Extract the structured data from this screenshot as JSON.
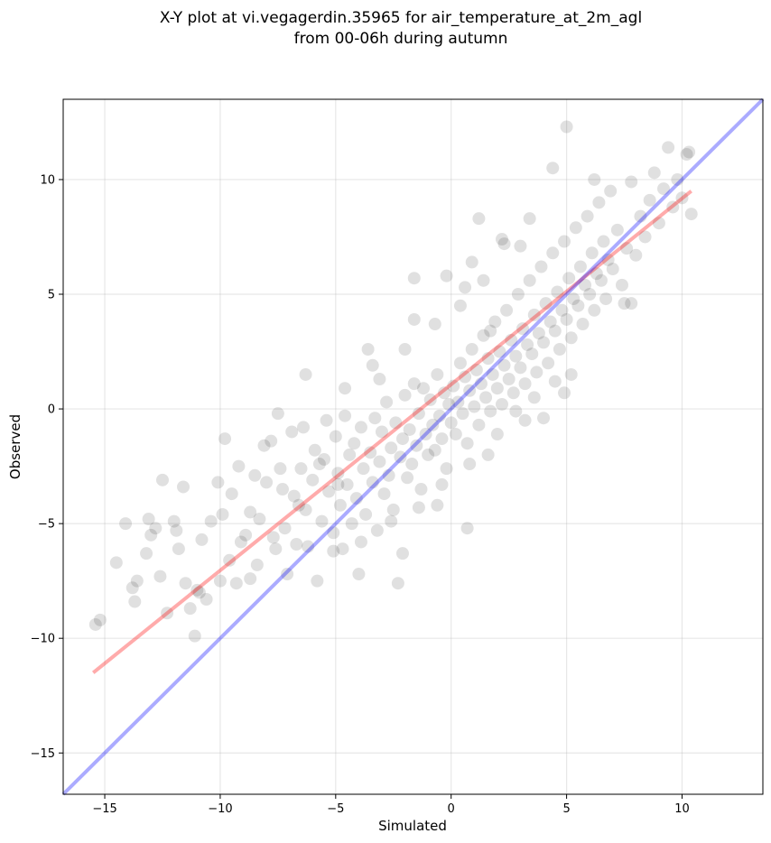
{
  "chart_data": {
    "type": "scatter",
    "title_lines": [
      "X-Y plot at vi.vegagerdin.35965 for air_temperature_at_2m_agl",
      "from 00-06h during autumn"
    ],
    "xlabel": "Simulated",
    "ylabel": "Observed",
    "xlim": [
      -16.8,
      13.5
    ],
    "ylim": [
      -16.8,
      13.5
    ],
    "xticks": [
      -15,
      -10,
      -5,
      0,
      5,
      10
    ],
    "yticks": [
      -15,
      -10,
      -5,
      0,
      5,
      10
    ],
    "xtick_labels": [
      "−15",
      "−10",
      "−5",
      "0",
      "5",
      "10"
    ],
    "ytick_labels": [
      "−15",
      "−10",
      "−5",
      "0",
      "5",
      "10"
    ],
    "grid": true,
    "point_color": "#000000",
    "point_alpha": 0.12,
    "points": [
      [
        -15.4,
        -9.4
      ],
      [
        -15.2,
        -9.2
      ],
      [
        -14.5,
        -6.7
      ],
      [
        -14.1,
        -5.0
      ],
      [
        -13.8,
        -7.8
      ],
      [
        -13.6,
        -7.5
      ],
      [
        -13.7,
        -8.4
      ],
      [
        -13.2,
        -6.3
      ],
      [
        -13.1,
        -4.8
      ],
      [
        -13.0,
        -5.5
      ],
      [
        -12.8,
        -5.2
      ],
      [
        -12.6,
        -7.3
      ],
      [
        -12.5,
        -3.1
      ],
      [
        -12.3,
        -8.9
      ],
      [
        -12.0,
        -4.9
      ],
      [
        -11.9,
        -5.3
      ],
      [
        -11.8,
        -6.1
      ],
      [
        -11.6,
        -3.4
      ],
      [
        -11.5,
        -7.6
      ],
      [
        -11.3,
        -8.7
      ],
      [
        -11.1,
        -9.9
      ],
      [
        -11.0,
        -7.9
      ],
      [
        -10.8,
        -5.7
      ],
      [
        -10.6,
        -8.3
      ],
      [
        -10.4,
        -4.9
      ],
      [
        -10.1,
        -3.2
      ],
      [
        -10.0,
        -7.5
      ],
      [
        -9.9,
        -4.6
      ],
      [
        -9.8,
        -1.3
      ],
      [
        -9.5,
        -3.7
      ],
      [
        -9.3,
        -7.6
      ],
      [
        -9.1,
        -5.8
      ],
      [
        -8.9,
        -5.5
      ],
      [
        -8.7,
        -7.4
      ],
      [
        -8.5,
        -2.9
      ],
      [
        -8.3,
        -4.8
      ],
      [
        -8.1,
        -1.6
      ],
      [
        -8.0,
        -3.2
      ],
      [
        -7.8,
        -1.4
      ],
      [
        -7.6,
        -6.1
      ],
      [
        -7.5,
        -0.2
      ],
      [
        -7.3,
        -3.5
      ],
      [
        -7.2,
        -5.2
      ],
      [
        -7.1,
        -7.2
      ],
      [
        -6.9,
        -1.0
      ],
      [
        -6.8,
        -3.8
      ],
      [
        -6.7,
        -5.9
      ],
      [
        -6.5,
        -2.6
      ],
      [
        -6.4,
        -0.8
      ],
      [
        -6.3,
        -4.4
      ],
      [
        -6.2,
        -6.0
      ],
      [
        -6.0,
        -3.1
      ],
      [
        -5.9,
        -1.8
      ],
      [
        -5.8,
        -7.5
      ],
      [
        -5.6,
        -4.9
      ],
      [
        -5.5,
        -2.2
      ],
      [
        -5.4,
        -0.5
      ],
      [
        -5.3,
        -3.6
      ],
      [
        -5.1,
        -5.4
      ],
      [
        -5.0,
        -1.2
      ],
      [
        -4.9,
        -2.8
      ],
      [
        -4.8,
        -4.2
      ],
      [
        -4.7,
        -6.1
      ],
      [
        -4.6,
        -0.3
      ],
      [
        -4.5,
        -3.3
      ],
      [
        -4.4,
        -2.0
      ],
      [
        -4.3,
        -5.0
      ],
      [
        -4.2,
        -1.5
      ],
      [
        -4.1,
        -3.9
      ],
      [
        -4.0,
        -7.2
      ],
      [
        -3.9,
        -0.8
      ],
      [
        -3.8,
        -2.6
      ],
      [
        -3.7,
        -4.6
      ],
      [
        -3.6,
        2.6
      ],
      [
        -3.5,
        -1.9
      ],
      [
        -3.4,
        -3.2
      ],
      [
        -3.3,
        -0.4
      ],
      [
        -3.2,
        -5.3
      ],
      [
        -3.1,
        -2.3
      ],
      [
        -3.0,
        -1.0
      ],
      [
        -2.9,
        -3.7
      ],
      [
        -2.8,
        0.3
      ],
      [
        -2.7,
        -2.9
      ],
      [
        -2.6,
        -1.7
      ],
      [
        -2.5,
        -4.4
      ],
      [
        -2.4,
        -0.6
      ],
      [
        -2.3,
        -7.6
      ],
      [
        -2.2,
        -2.1
      ],
      [
        -2.1,
        -1.3
      ],
      [
        -2.0,
        0.6
      ],
      [
        -1.9,
        -3.0
      ],
      [
        -1.8,
        -0.9
      ],
      [
        -1.7,
        -2.4
      ],
      [
        -1.6,
        1.1
      ],
      [
        -1.5,
        -1.6
      ],
      [
        -1.4,
        -0.2
      ],
      [
        -1.3,
        -3.5
      ],
      [
        -1.2,
        0.9
      ],
      [
        -1.1,
        -1.1
      ],
      [
        -1.0,
        -2.0
      ],
      [
        -0.9,
        0.4
      ],
      [
        -0.8,
        -0.7
      ],
      [
        -0.7,
        -1.8
      ],
      [
        -0.6,
        1.5
      ],
      [
        -0.5,
        -0.3
      ],
      [
        -0.4,
        -1.3
      ],
      [
        -0.3,
        0.7
      ],
      [
        -0.2,
        -2.6
      ],
      [
        -0.1,
        0.2
      ],
      [
        0.0,
        -0.6
      ],
      [
        0.1,
        1.0
      ],
      [
        0.2,
        -1.1
      ],
      [
        0.3,
        0.3
      ],
      [
        0.4,
        2.0
      ],
      [
        0.5,
        -0.2
      ],
      [
        0.6,
        1.4
      ],
      [
        0.7,
        -1.5
      ],
      [
        0.8,
        0.8
      ],
      [
        0.9,
        2.6
      ],
      [
        1.0,
        0.1
      ],
      [
        1.1,
        1.7
      ],
      [
        1.2,
        -0.7
      ],
      [
        1.3,
        1.1
      ],
      [
        1.4,
        3.2
      ],
      [
        1.5,
        0.5
      ],
      [
        1.6,
        2.2
      ],
      [
        1.7,
        -0.1
      ],
      [
        1.8,
        1.5
      ],
      [
        1.9,
        3.8
      ],
      [
        2.0,
        0.9
      ],
      [
        2.1,
        2.5
      ],
      [
        2.2,
        0.2
      ],
      [
        2.3,
        1.9
      ],
      [
        2.4,
        4.3
      ],
      [
        2.5,
        1.3
      ],
      [
        2.6,
        3.0
      ],
      [
        2.7,
        0.7
      ],
      [
        2.8,
        2.3
      ],
      [
        2.9,
        5.0
      ],
      [
        3.0,
        1.8
      ],
      [
        3.1,
        3.5
      ],
      [
        3.2,
        1.1
      ],
      [
        3.3,
        2.8
      ],
      [
        3.4,
        5.6
      ],
      [
        3.5,
        2.4
      ],
      [
        3.6,
        4.1
      ],
      [
        3.7,
        1.6
      ],
      [
        3.8,
        3.3
      ],
      [
        3.9,
        6.2
      ],
      [
        4.0,
        2.9
      ],
      [
        4.1,
        4.6
      ],
      [
        4.2,
        2.0
      ],
      [
        4.3,
        3.8
      ],
      [
        4.4,
        6.8
      ],
      [
        4.5,
        3.4
      ],
      [
        4.6,
        5.1
      ],
      [
        4.7,
        2.6
      ],
      [
        4.8,
        4.3
      ],
      [
        4.9,
        7.3
      ],
      [
        5.0,
        3.9
      ],
      [
        5.1,
        5.7
      ],
      [
        5.2,
        3.1
      ],
      [
        5.3,
        4.8
      ],
      [
        5.4,
        7.9
      ],
      [
        5.5,
        4.5
      ],
      [
        5.6,
        6.2
      ],
      [
        5.7,
        3.7
      ],
      [
        5.8,
        5.4
      ],
      [
        5.9,
        8.4
      ],
      [
        6.0,
        5.0
      ],
      [
        6.1,
        6.8
      ],
      [
        6.2,
        4.3
      ],
      [
        6.3,
        5.9
      ],
      [
        6.4,
        9.0
      ],
      [
        6.5,
        5.6
      ],
      [
        6.6,
        7.3
      ],
      [
        6.7,
        4.8
      ],
      [
        6.8,
        6.5
      ],
      [
        6.9,
        9.5
      ],
      [
        7.0,
        6.1
      ],
      [
        7.2,
        7.8
      ],
      [
        7.4,
        5.4
      ],
      [
        7.6,
        7.0
      ],
      [
        7.8,
        9.9
      ],
      [
        8.0,
        6.7
      ],
      [
        8.2,
        8.4
      ],
      [
        8.4,
        7.5
      ],
      [
        8.6,
        9.1
      ],
      [
        8.8,
        10.3
      ],
      [
        9.0,
        8.1
      ],
      [
        9.2,
        9.6
      ],
      [
        9.4,
        11.4
      ],
      [
        9.6,
        8.8
      ],
      [
        9.8,
        10.0
      ],
      [
        10.0,
        9.2
      ],
      [
        10.2,
        11.1
      ],
      [
        10.4,
        8.5
      ],
      [
        10.3,
        11.2
      ],
      [
        7.5,
        4.6
      ],
      [
        7.8,
        4.6
      ],
      [
        5.0,
        12.3
      ],
      [
        4.4,
        10.5
      ],
      [
        6.2,
        10.0
      ],
      [
        3.4,
        8.3
      ],
      [
        2.3,
        7.2
      ],
      [
        1.2,
        8.3
      ],
      [
        0.9,
        6.4
      ],
      [
        -0.2,
        5.8
      ],
      [
        -1.6,
        5.7
      ],
      [
        -0.7,
        3.7
      ],
      [
        0.4,
        4.5
      ],
      [
        2.2,
        7.4
      ],
      [
        1.7,
        3.4
      ],
      [
        -2.0,
        2.6
      ],
      [
        -3.4,
        1.9
      ],
      [
        -4.6,
        0.9
      ],
      [
        -6.3,
        1.5
      ],
      [
        -7.4,
        -2.6
      ],
      [
        -8.7,
        -4.5
      ],
      [
        -10.9,
        -8.0
      ],
      [
        -3.1,
        1.3
      ],
      [
        -1.6,
        3.9
      ],
      [
        0.6,
        5.3
      ],
      [
        3.0,
        7.1
      ],
      [
        1.4,
        5.6
      ],
      [
        -2.1,
        -6.3
      ],
      [
        0.7,
        -5.2
      ],
      [
        -0.6,
        -4.2
      ],
      [
        -4.9,
        -3.3
      ],
      [
        -5.7,
        -2.4
      ],
      [
        -6.6,
        -4.2
      ],
      [
        -7.7,
        -5.6
      ],
      [
        -9.6,
        -6.6
      ],
      [
        -8.4,
        -6.8
      ],
      [
        -9.2,
        -2.5
      ],
      [
        2.8,
        -0.1
      ],
      [
        3.2,
        -0.5
      ],
      [
        4.5,
        1.2
      ],
      [
        4.9,
        0.7
      ],
      [
        5.2,
        1.5
      ],
      [
        4.0,
        -0.4
      ],
      [
        2.0,
        -1.1
      ],
      [
        3.6,
        0.5
      ],
      [
        1.6,
        -2.0
      ],
      [
        0.8,
        -2.4
      ],
      [
        -0.4,
        -3.3
      ],
      [
        -1.4,
        -4.3
      ],
      [
        -2.6,
        -4.9
      ],
      [
        -3.9,
        -5.8
      ],
      [
        -5.1,
        -6.2
      ]
    ],
    "series": [
      {
        "color": "#ff0000",
        "alpha": 0.33,
        "x": [
          -15.5,
          10.4
        ],
        "y": [
          -11.5,
          9.5
        ]
      },
      {
        "color": "#0000ff",
        "alpha": 0.33,
        "x": [
          -16.8,
          13.5
        ],
        "y": [
          -16.8,
          13.5
        ]
      }
    ]
  }
}
